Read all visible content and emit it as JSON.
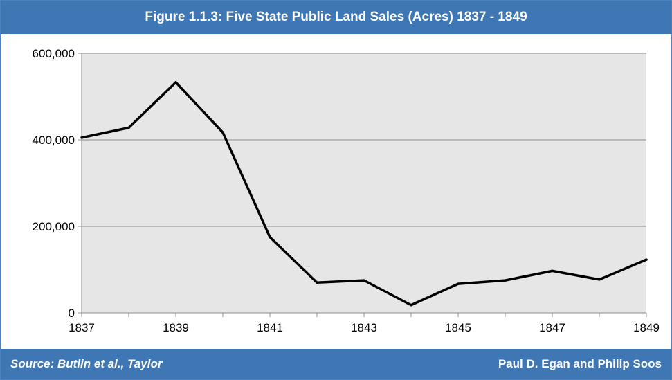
{
  "header": {
    "title": "Figure 1.1.3: Five State Public Land Sales (Acres) 1837 - 1849"
  },
  "footer": {
    "source": "Source: Butlin et al., Taylor",
    "credit": "Paul D. Egan and Philip Soos"
  },
  "colors": {
    "bar": "#3f77b5",
    "plot_bg": "#e6e6e6",
    "grid": "#8c8c8c",
    "line": "#000000"
  },
  "chart_data": {
    "type": "line",
    "title": "Figure 1.1.3: Five State Public Land Sales (Acres) 1837 - 1849",
    "xlabel": "",
    "ylabel": "",
    "x": [
      1837,
      1838,
      1839,
      1840,
      1841,
      1842,
      1843,
      1844,
      1845,
      1846,
      1847,
      1848,
      1849
    ],
    "series": [
      {
        "values": [
          405000,
          428000,
          533000,
          417000,
          175000,
          70000,
          75000,
          18000,
          67000,
          75000,
          97000,
          77000,
          123000
        ]
      }
    ],
    "xlim": [
      1837,
      1849
    ],
    "ylim": [
      0,
      600000
    ],
    "x_ticks": [
      "1837",
      "1839",
      "1841",
      "1843",
      "1845",
      "1847",
      "1849"
    ],
    "y_ticks": [
      "0",
      "200,000",
      "400,000",
      "600,000"
    ],
    "grid": true,
    "legend": "none"
  }
}
